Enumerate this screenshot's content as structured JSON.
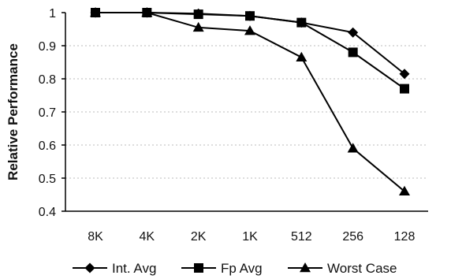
{
  "chart_data": {
    "type": "line",
    "categories": [
      "8K",
      "4K",
      "2K",
      "1K",
      "512",
      "256",
      "128"
    ],
    "series": [
      {
        "name": "Int. Avg",
        "marker": "diamond",
        "values": [
          1.0,
          1.0,
          0.997,
          0.99,
          0.97,
          0.94,
          0.815
        ]
      },
      {
        "name": "Fp Avg",
        "marker": "square",
        "values": [
          1.0,
          1.0,
          0.995,
          0.99,
          0.97,
          0.88,
          0.77
        ]
      },
      {
        "name": "Worst Case",
        "marker": "triangle",
        "values": [
          1.0,
          1.0,
          0.955,
          0.945,
          0.865,
          0.59,
          0.46
        ]
      }
    ],
    "ylabel": "Relative Performance",
    "xlabel": "",
    "ylim": [
      0.4,
      1.0
    ],
    "yticks": [
      0.4,
      0.5,
      0.6,
      0.7,
      0.8,
      0.9,
      1
    ],
    "ytick_labels": [
      "0.4",
      "0.5",
      "0.6",
      "0.7",
      "0.8",
      "0.9",
      "1"
    ],
    "grid": true,
    "legend_position": "bottom",
    "colors": {
      "line": "#000000",
      "grid": "#bbbbbb",
      "background": "#ffffff"
    }
  }
}
